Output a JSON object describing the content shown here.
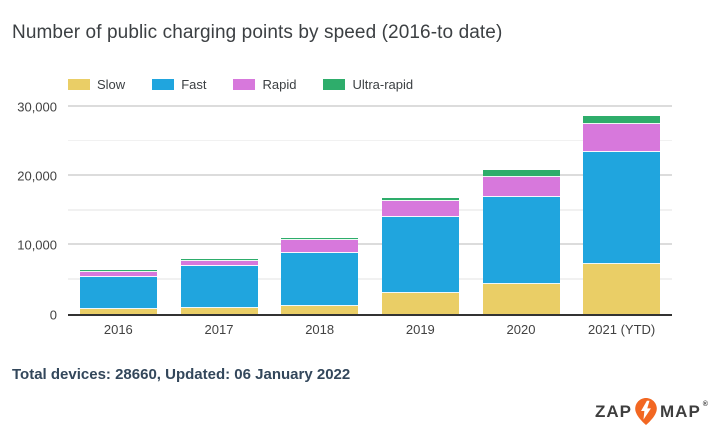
{
  "title": "Number of public charging points by speed (2016-to date)",
  "chart_data": {
    "type": "bar",
    "stacked": true,
    "title": "Number of public charging points by speed (2016-to date)",
    "categories": [
      "2016",
      "2017",
      "2018",
      "2019",
      "2020",
      "2021 (YTD)"
    ],
    "series": [
      {
        "name": "Slow",
        "color": "#eace66",
        "values": [
          800,
          900,
          1300,
          3100,
          4400,
          7300
        ]
      },
      {
        "name": "Fast",
        "color": "#20a5de",
        "values": [
          4600,
          6150,
          7600,
          10900,
          12600,
          16100
        ]
      },
      {
        "name": "Rapid",
        "color": "#d778dc",
        "values": [
          750,
          650,
          1800,
          2350,
          2900,
          4060
        ]
      },
      {
        "name": "Ultra-rapid",
        "color": "#2ead6b",
        "values": [
          300,
          300,
          300,
          500,
          1000,
          1200
        ]
      }
    ],
    "totals": [
      6450,
      8000,
      11000,
      16850,
      20900,
      28660
    ],
    "xlabel": "",
    "ylabel": "",
    "ylim": [
      0,
      30000
    ],
    "yticks": [
      0,
      10000,
      20000,
      30000
    ],
    "ytick_labels": [
      "0",
      "10,000",
      "20,000",
      "30,000"
    ],
    "minor_yticks": [
      5000,
      15000,
      25000
    ],
    "grid": true,
    "legend_position": "top-left"
  },
  "footer": {
    "text": "Total devices: 28660, Updated: 06 January 2022"
  },
  "logo": {
    "zap": "ZAP",
    "map": "MAP",
    "reg": "®",
    "pin_color": "#f26722",
    "pin_icon": "lightning-bolt-map-pin"
  },
  "colors": {
    "axis_line": "#333333",
    "tick_label": "#424242",
    "grid_major": "#dcdcdc",
    "grid_minor": "#f1f1f1",
    "title_text": "#3c4043",
    "footer_text": "#33475b",
    "logo_text": "#3e3e3e"
  }
}
